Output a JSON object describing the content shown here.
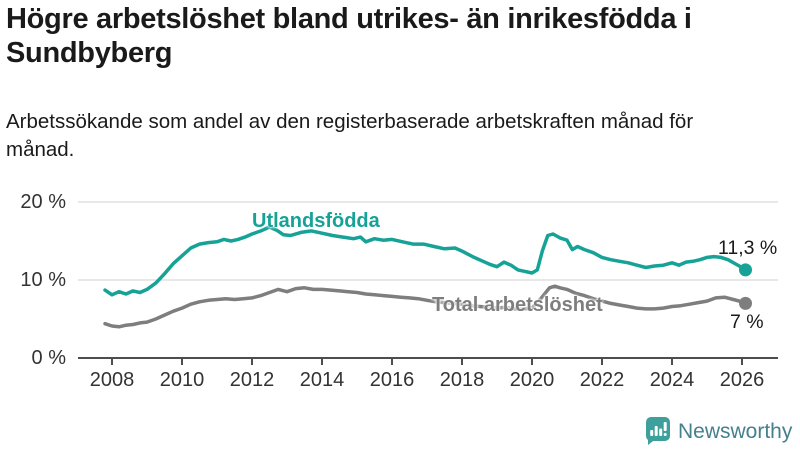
{
  "header": {
    "title": "Högre arbetslöshet bland utrikes- än inrikesfödda i Sundbyberg",
    "subtitle": "Arbetssökande som andel av den registerbaserade arbetskraften månad för månad."
  },
  "chart_data": {
    "type": "line",
    "title": "Högre arbetslöshet bland utrikes- än inrikesfödda i Sundbyberg",
    "subtitle": "Arbetssökande som andel av den registerbaserade arbetskraften månad för månad.",
    "xlabel": "",
    "ylabel": "",
    "xlim": [
      2007.4,
      2026.9
    ],
    "ylim": [
      0,
      22
    ],
    "grid": "horizontal",
    "legend_position": "inline-labels",
    "x_ticks": [
      2008,
      2010,
      2012,
      2014,
      2016,
      2018,
      2020,
      2022,
      2024,
      2026
    ],
    "y_ticks": [
      {
        "value": 0,
        "label": "0 %"
      },
      {
        "value": 10,
        "label": "10 %"
      },
      {
        "value": 20,
        "label": "20 %"
      }
    ],
    "style": {
      "grid_color": "#d9d9d9",
      "axis_color": "#4d4d4d",
      "tick_label_color": "#333333"
    },
    "series": [
      {
        "name": "Utlandsfödda",
        "color": "#16a296",
        "end_label": "11,3 %",
        "end_value": 11.3,
        "x": [
          2007.8,
          2008.0,
          2008.2,
          2008.4,
          2008.6,
          2008.8,
          2009.0,
          2009.25,
          2009.5,
          2009.75,
          2010.0,
          2010.25,
          2010.5,
          2010.75,
          2011.0,
          2011.2,
          2011.4,
          2011.6,
          2011.8,
          2012.0,
          2012.25,
          2012.5,
          2012.7,
          2012.9,
          2013.1,
          2013.4,
          2013.7,
          2014.0,
          2014.3,
          2014.6,
          2014.9,
          2015.1,
          2015.25,
          2015.5,
          2015.75,
          2016.0,
          2016.3,
          2016.6,
          2016.9,
          2017.2,
          2017.5,
          2017.8,
          2018.0,
          2018.3,
          2018.6,
          2018.8,
          2019.0,
          2019.2,
          2019.4,
          2019.6,
          2019.8,
          2020.0,
          2020.15,
          2020.3,
          2020.45,
          2020.6,
          2020.8,
          2021.0,
          2021.15,
          2021.3,
          2021.5,
          2021.75,
          2022.0,
          2022.25,
          2022.5,
          2022.75,
          2023.0,
          2023.25,
          2023.5,
          2023.75,
          2024.0,
          2024.2,
          2024.4,
          2024.6,
          2024.8,
          2025.0,
          2025.2,
          2025.4,
          2025.6,
          2025.8,
          2026.0,
          2026.1
        ],
        "values": [
          8.7,
          8.1,
          8.5,
          8.2,
          8.6,
          8.4,
          8.8,
          9.6,
          10.8,
          12.1,
          13.1,
          14.1,
          14.6,
          14.8,
          14.9,
          15.2,
          15.0,
          15.2,
          15.5,
          15.9,
          16.3,
          16.8,
          16.4,
          15.8,
          15.7,
          16.1,
          16.3,
          16.0,
          15.7,
          15.5,
          15.3,
          15.5,
          14.9,
          15.3,
          15.1,
          15.2,
          14.9,
          14.6,
          14.6,
          14.3,
          14.0,
          14.1,
          13.7,
          13.0,
          12.4,
          12.0,
          11.7,
          12.3,
          11.9,
          11.3,
          11.1,
          10.9,
          11.3,
          13.8,
          15.7,
          15.9,
          15.4,
          15.1,
          13.9,
          14.3,
          13.9,
          13.5,
          12.9,
          12.6,
          12.4,
          12.2,
          11.9,
          11.6,
          11.8,
          11.9,
          12.2,
          11.9,
          12.3,
          12.4,
          12.6,
          12.9,
          13.0,
          12.9,
          12.6,
          12.1,
          11.6,
          11.3
        ]
      },
      {
        "name": "Total arbetslöshet",
        "color": "#7e7e7e",
        "end_label": "7 %",
        "end_value": 7.0,
        "x": [
          2007.8,
          2008.0,
          2008.2,
          2008.4,
          2008.6,
          2008.8,
          2009.0,
          2009.25,
          2009.5,
          2009.75,
          2010.0,
          2010.25,
          2010.5,
          2010.75,
          2011.0,
          2011.25,
          2011.5,
          2011.75,
          2012.0,
          2012.25,
          2012.5,
          2012.75,
          2013.0,
          2013.25,
          2013.5,
          2013.75,
          2014.0,
          2014.25,
          2014.5,
          2014.75,
          2015.0,
          2015.25,
          2015.5,
          2015.75,
          2016.0,
          2016.25,
          2016.5,
          2016.75,
          2017.0,
          2017.25,
          2017.5,
          2017.75,
          2018.0,
          2018.25,
          2018.5,
          2018.75,
          2019.0,
          2019.25,
          2019.5,
          2019.75,
          2020.0,
          2020.25,
          2020.5,
          2020.65,
          2020.8,
          2021.0,
          2021.25,
          2021.5,
          2021.75,
          2022.0,
          2022.25,
          2022.5,
          2022.75,
          2023.0,
          2023.25,
          2023.5,
          2023.75,
          2024.0,
          2024.25,
          2024.5,
          2024.75,
          2025.0,
          2025.25,
          2025.5,
          2025.75,
          2026.0,
          2026.1
        ],
        "values": [
          4.4,
          4.1,
          4.0,
          4.2,
          4.3,
          4.5,
          4.6,
          5.0,
          5.5,
          6.0,
          6.4,
          6.9,
          7.2,
          7.4,
          7.5,
          7.6,
          7.5,
          7.6,
          7.7,
          8.0,
          8.4,
          8.8,
          8.5,
          8.9,
          9.0,
          8.8,
          8.8,
          8.7,
          8.6,
          8.5,
          8.4,
          8.2,
          8.1,
          8.0,
          7.9,
          7.8,
          7.7,
          7.6,
          7.4,
          7.2,
          7.1,
          7.0,
          6.9,
          6.7,
          6.6,
          6.5,
          6.4,
          6.5,
          6.3,
          6.3,
          6.4,
          7.6,
          9.0,
          9.2,
          9.0,
          8.8,
          8.3,
          8.0,
          7.6,
          7.3,
          7.0,
          6.8,
          6.6,
          6.4,
          6.3,
          6.3,
          6.4,
          6.6,
          6.7,
          6.9,
          7.1,
          7.3,
          7.7,
          7.8,
          7.5,
          7.2,
          7.0
        ]
      }
    ]
  },
  "footer": {
    "brand": "Newsworthy",
    "brand_color": "#45808d",
    "icon_color": "#3da09c"
  }
}
